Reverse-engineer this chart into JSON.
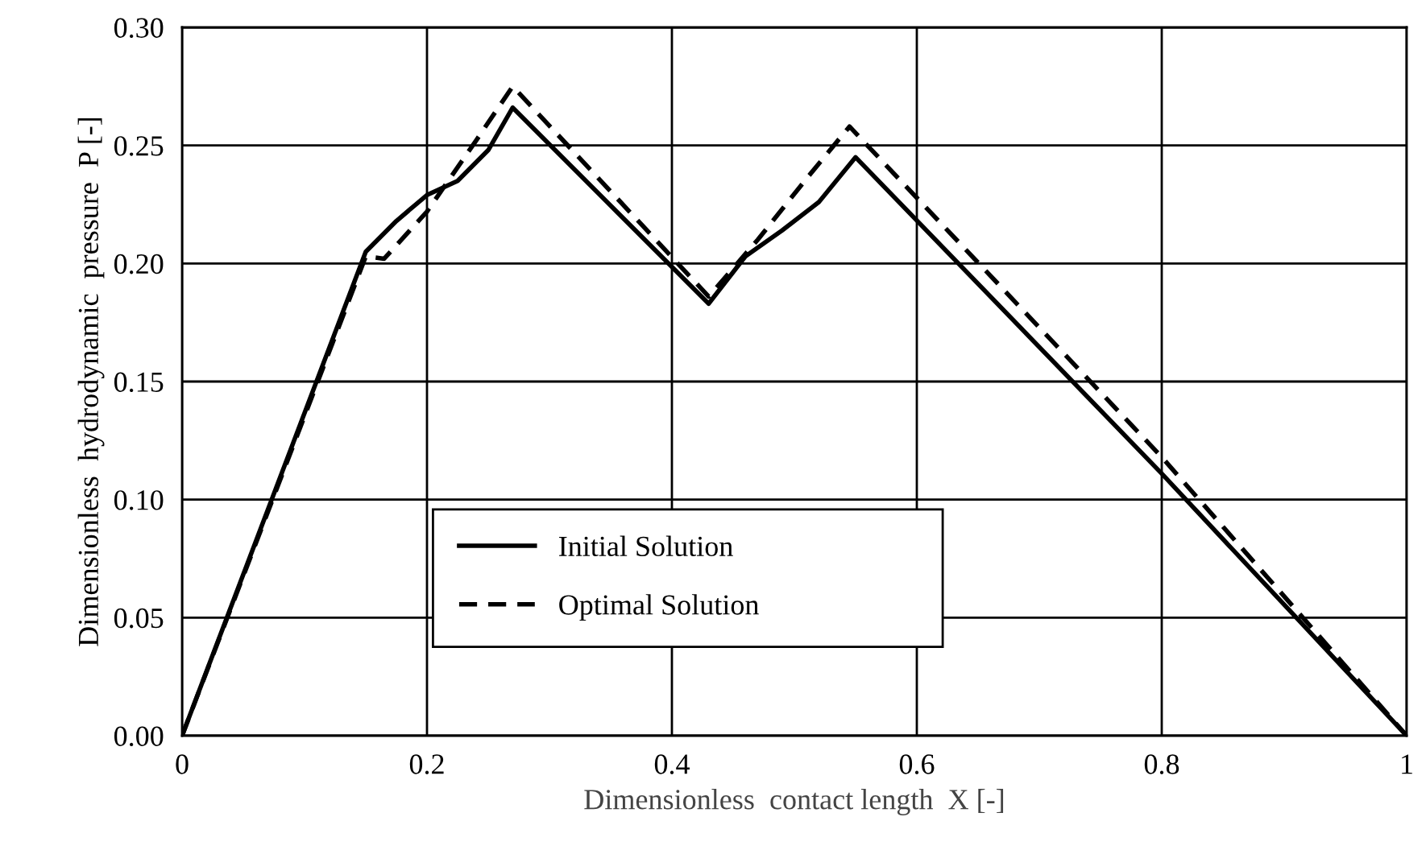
{
  "chart_data": {
    "type": "line",
    "xlabel": "Dimensionless  contact length  X [-]",
    "ylabel": "Dimensionless  hydrodynamic  pressure  P [-]",
    "xlim": [
      0,
      1
    ],
    "xticks": [
      0,
      0.2,
      0.4,
      0.6,
      0.8,
      1
    ],
    "ylim": [
      0,
      0.3
    ],
    "yticks": [
      {
        "value": 0,
        "label": "0.00"
      },
      {
        "value": 0.05,
        "label": "0.05"
      },
      {
        "value": 0.1,
        "label": "0.10"
      },
      {
        "value": 0.15,
        "label": "0.15"
      },
      {
        "value": 0.2,
        "label": "0.20"
      },
      {
        "value": 0.25,
        "label": "0.25"
      },
      {
        "value": 0.3,
        "label": "0.30"
      }
    ],
    "grid": true,
    "legend": "bottom left",
    "marker": "none",
    "series": [
      {
        "name": "Initial Solution",
        "color": "#000000",
        "line_style": "solid",
        "x": [
          0,
          0.15,
          0.175,
          0.2,
          0.225,
          0.25,
          0.27,
          0.43,
          0.46,
          0.49,
          0.52,
          0.55,
          0.8,
          1
        ],
        "values": [
          0,
          0.205,
          0.218,
          0.229,
          0.235,
          0.248,
          0.266,
          0.183,
          0.203,
          0.214,
          0.226,
          0.245,
          0.111,
          0
        ]
      },
      {
        "name": "Optimal Solution",
        "color": "#000000",
        "line_style": "dashed",
        "x": [
          0,
          0.15,
          0.165,
          0.2,
          0.24,
          0.27,
          0.43,
          0.47,
          0.51,
          0.545,
          0.8,
          1
        ],
        "values": [
          0,
          0.203,
          0.202,
          0.222,
          0.252,
          0.275,
          0.186,
          0.21,
          0.236,
          0.258,
          0.118,
          0
        ]
      }
    ]
  }
}
